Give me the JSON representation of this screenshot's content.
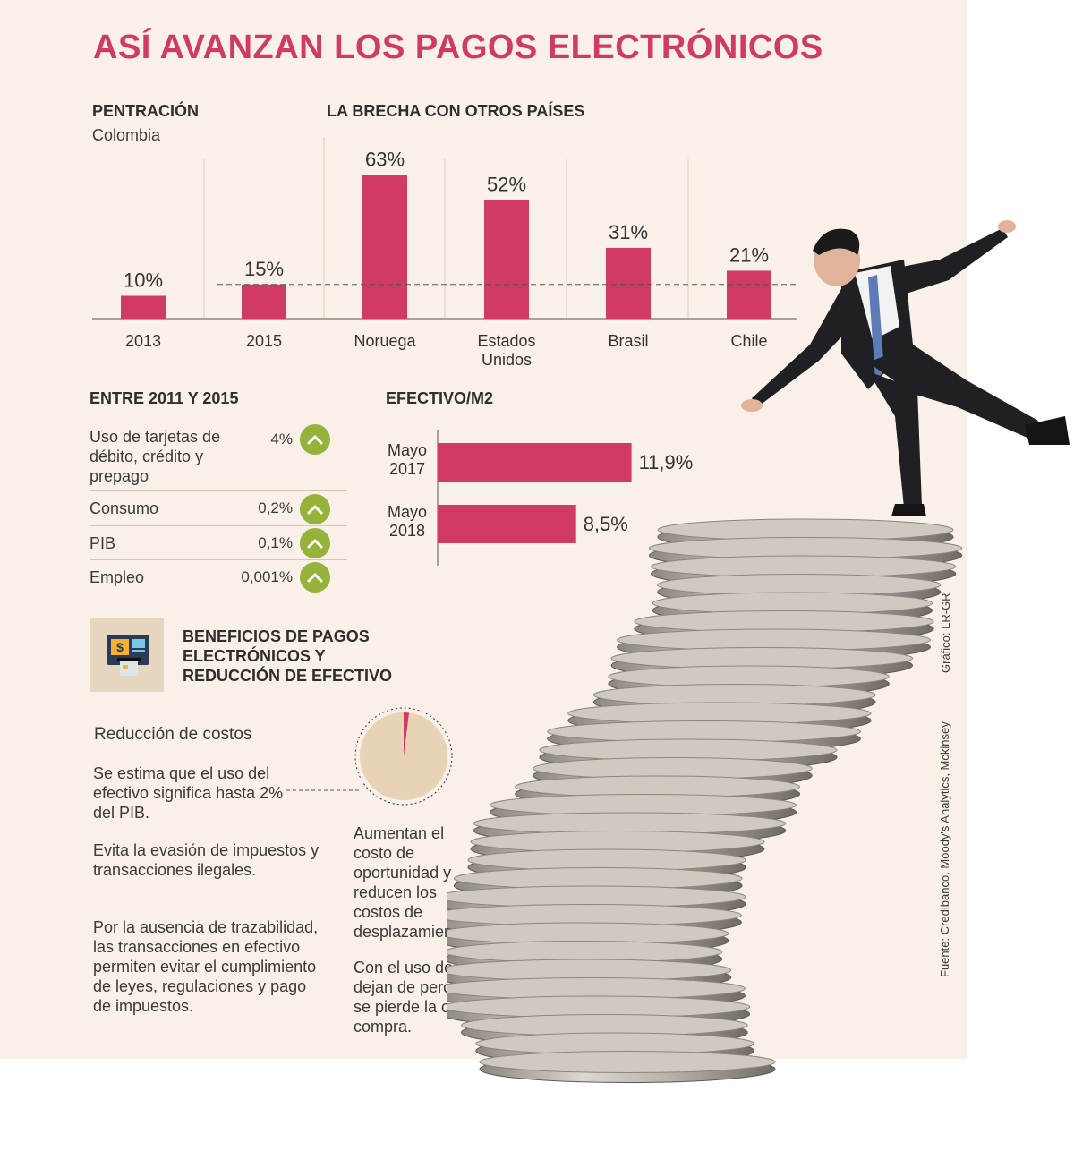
{
  "title": "ASÍ AVANZAN LOS PAGOS ELECTRÓNICOS",
  "penetration": {
    "heading": "PENTRACIÓN",
    "subheading": "Colombia"
  },
  "gap": {
    "heading": "LA BRECHA CON OTROS PAÍSES"
  },
  "growth": {
    "heading": "ENTRE 2011 Y 2015",
    "rows": [
      {
        "label": "Uso de tarjetas de débito, crédito y prepago",
        "value": "4%",
        "icon": "chevron-up-icon"
      },
      {
        "label": "Consumo",
        "value": "0,2%",
        "icon": "chevron-up-icon"
      },
      {
        "label": "PIB",
        "value": "0,1%",
        "icon": "chevron-up-icon"
      },
      {
        "label": "Empleo",
        "value": "0,001%",
        "icon": "chevron-up-icon"
      }
    ]
  },
  "cash": {
    "heading": "EFECTIVO/M2"
  },
  "benefits": {
    "heading": "BENEFICIOS DE PAGOS ELECTRÓNICOS Y REDUCCIÓN DE EFECTIVO",
    "icon": "atm-card-icon",
    "cost_title": "Reducción de costos",
    "p1": "Se estima que el uso del efectivo significa hasta 2% del PIB.",
    "p2": "Evita la evasión de impuestos y transacciones ilegales.",
    "p3": "Por la ausencia de trazabilidad, las transacciones en efectivo permiten evitar el cumplimiento de leyes, regulaciones y pago de impuestos.",
    "p4": "Aumentan el costo de oportunidad y reducen los costos de desplazamiento.",
    "p5": "Con el uso de efectivo se dejan de percibir intereses y se pierde la oportunidad de compra."
  },
  "credits": {
    "graphic": "Gráfico: LR-GR",
    "source": "Fuente: Credibanco, Moody's Analytics, Mckinsey"
  },
  "illustration": "businessman-balancing-on-coin-stack",
  "colors": {
    "accent": "#d03a63",
    "green": "#95b23a",
    "beige": "#e8d3b6",
    "panel": "#f9f1e8"
  },
  "chart_data": [
    {
      "type": "bar",
      "categories": [
        "2013",
        "2015",
        "Noruega",
        "Estados Unidos",
        "Brasil",
        "Chile"
      ],
      "values": [
        10,
        15,
        63,
        52,
        31,
        21
      ],
      "labels": [
        "10%",
        "15%",
        "63%",
        "52%",
        "31%",
        "21%"
      ],
      "ylim": [
        0,
        70
      ],
      "reference_line": 15
    },
    {
      "type": "bar",
      "orientation": "horizontal",
      "categories": [
        "Mayo 2017",
        "Mayo 2018"
      ],
      "values": [
        11.9,
        8.5
      ],
      "labels": [
        "11,9%",
        "8,5%"
      ],
      "xlim": [
        0,
        15
      ]
    },
    {
      "type": "pie",
      "values": [
        2,
        98
      ],
      "colors": [
        "#d03a63",
        "#e8d3b6"
      ]
    }
  ]
}
